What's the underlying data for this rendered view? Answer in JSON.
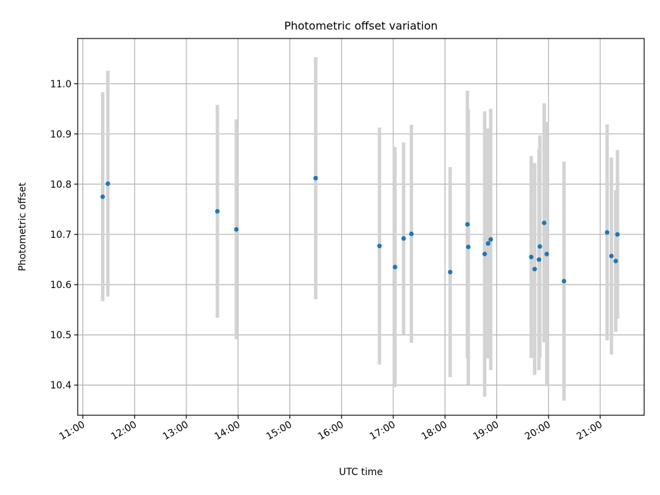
{
  "chart_data": {
    "type": "scatter",
    "title": "Photometric offset variation",
    "xlabel": "UTC time",
    "ylabel": "Photometric offset",
    "x_ticks": [
      "11:00",
      "12:00",
      "13:00",
      "14:00",
      "15:00",
      "16:00",
      "17:00",
      "18:00",
      "19:00",
      "20:00",
      "21:00"
    ],
    "y_ticks": [
      "10.4",
      "10.5",
      "10.6",
      "10.7",
      "10.8",
      "10.9",
      "11.0"
    ],
    "xlim": [
      "10:54",
      "21:51"
    ],
    "ylim": [
      10.34,
      11.09
    ],
    "grid": true,
    "colors": {
      "point": "#1f77b4",
      "errorbar": "#d3d3d3",
      "grid": "#b0b0b0"
    },
    "points": [
      {
        "x": "11:23",
        "y": 10.775,
        "yerr": 0.208
      },
      {
        "x": "11:29",
        "y": 10.801,
        "yerr": 0.225
      },
      {
        "x": "13:36",
        "y": 10.746,
        "yerr": 0.212
      },
      {
        "x": "13:58",
        "y": 10.71,
        "yerr": 0.219
      },
      {
        "x": "15:30",
        "y": 10.812,
        "yerr": 0.241
      },
      {
        "x": "16:44",
        "y": 10.677,
        "yerr": 0.236
      },
      {
        "x": "17:02",
        "y": 10.635,
        "yerr": 0.239
      },
      {
        "x": "17:12",
        "y": 10.692,
        "yerr": 0.191
      },
      {
        "x": "17:21",
        "y": 10.701,
        "yerr": 0.217
      },
      {
        "x": "18:06",
        "y": 10.625,
        "yerr": 0.209
      },
      {
        "x": "18:26",
        "y": 10.72,
        "yerr": 0.266
      },
      {
        "x": "18:27",
        "y": 10.675,
        "yerr": 0.274
      },
      {
        "x": "18:46",
        "y": 10.661,
        "yerr": 0.284
      },
      {
        "x": "18:50",
        "y": 10.682,
        "yerr": 0.229
      },
      {
        "x": "18:53",
        "y": 10.69,
        "yerr": 0.26
      },
      {
        "x": "19:40",
        "y": 10.655,
        "yerr": 0.201
      },
      {
        "x": "19:44",
        "y": 10.631,
        "yerr": 0.211
      },
      {
        "x": "19:49",
        "y": 10.65,
        "yerr": 0.22
      },
      {
        "x": "19:50",
        "y": 10.676,
        "yerr": 0.221
      },
      {
        "x": "19:55",
        "y": 10.723,
        "yerr": 0.238
      },
      {
        "x": "19:58",
        "y": 10.661,
        "yerr": 0.263
      },
      {
        "x": "20:18",
        "y": 10.607,
        "yerr": 0.238
      },
      {
        "x": "21:08",
        "y": 10.704,
        "yerr": 0.215
      },
      {
        "x": "21:13",
        "y": 10.657,
        "yerr": 0.196
      },
      {
        "x": "21:18",
        "y": 10.647,
        "yerr": 0.141
      },
      {
        "x": "21:20",
        "y": 10.7,
        "yerr": 0.168
      }
    ]
  }
}
